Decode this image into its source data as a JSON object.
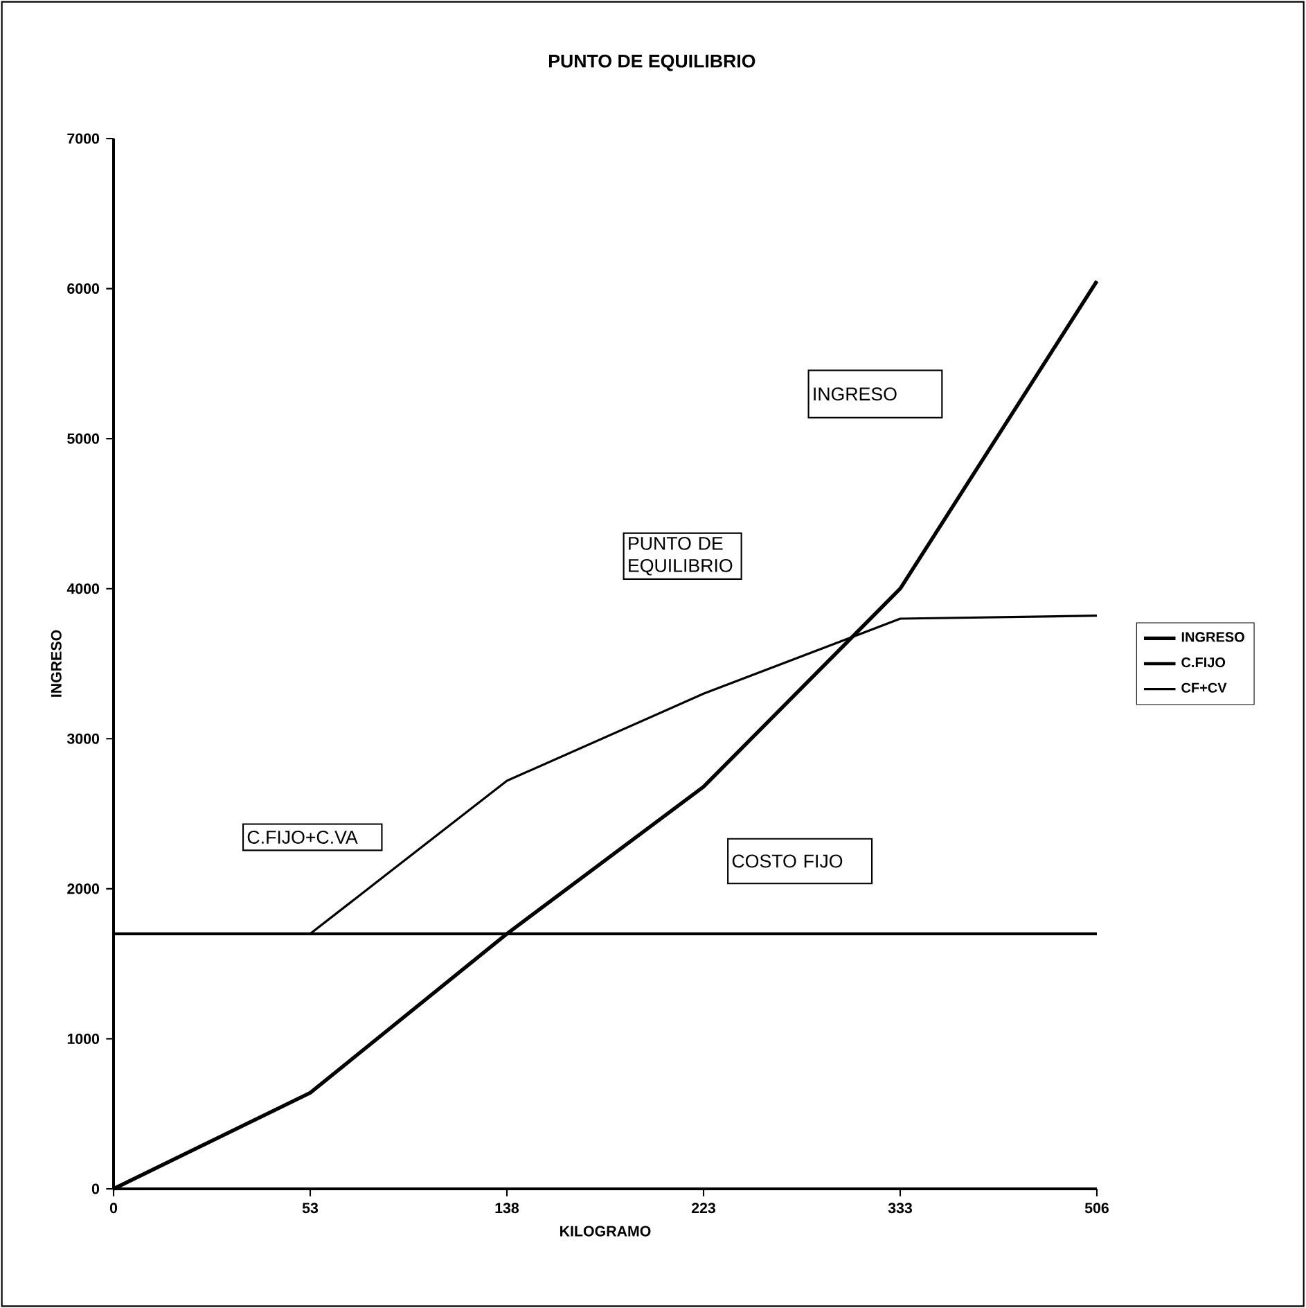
{
  "chart_data": {
    "type": "line",
    "title": "PUNTO DE EQUILIBRIO",
    "xlabel": "KILOGRAMO",
    "ylabel": "INGRESO",
    "categories": [
      "0",
      "53",
      "138",
      "223",
      "333",
      "506"
    ],
    "series": [
      {
        "name": "INGRESO",
        "color": "#000000",
        "values": [
          0,
          640,
          1700,
          2680,
          4000,
          6050
        ]
      },
      {
        "name": "C.FIJO",
        "color": "#000000",
        "values": [
          1700,
          1700,
          1700,
          1700,
          1700,
          1700
        ]
      },
      {
        "name": "CF+CV",
        "color": "#000000",
        "values": [
          1700,
          1700,
          2720,
          3300,
          3800,
          3820
        ]
      }
    ],
    "ylim": [
      0,
      7000
    ],
    "yticks": [
      0,
      1000,
      2000,
      3000,
      4000,
      5000,
      6000,
      7000
    ],
    "legend": "right",
    "grid": false,
    "marker": "none",
    "line_style": "solid",
    "annotations": [
      "INGRESO",
      "PUNTO DE EQUILIBRIO",
      "C.FIJO+C.VA",
      "COSTO FIJO"
    ]
  }
}
